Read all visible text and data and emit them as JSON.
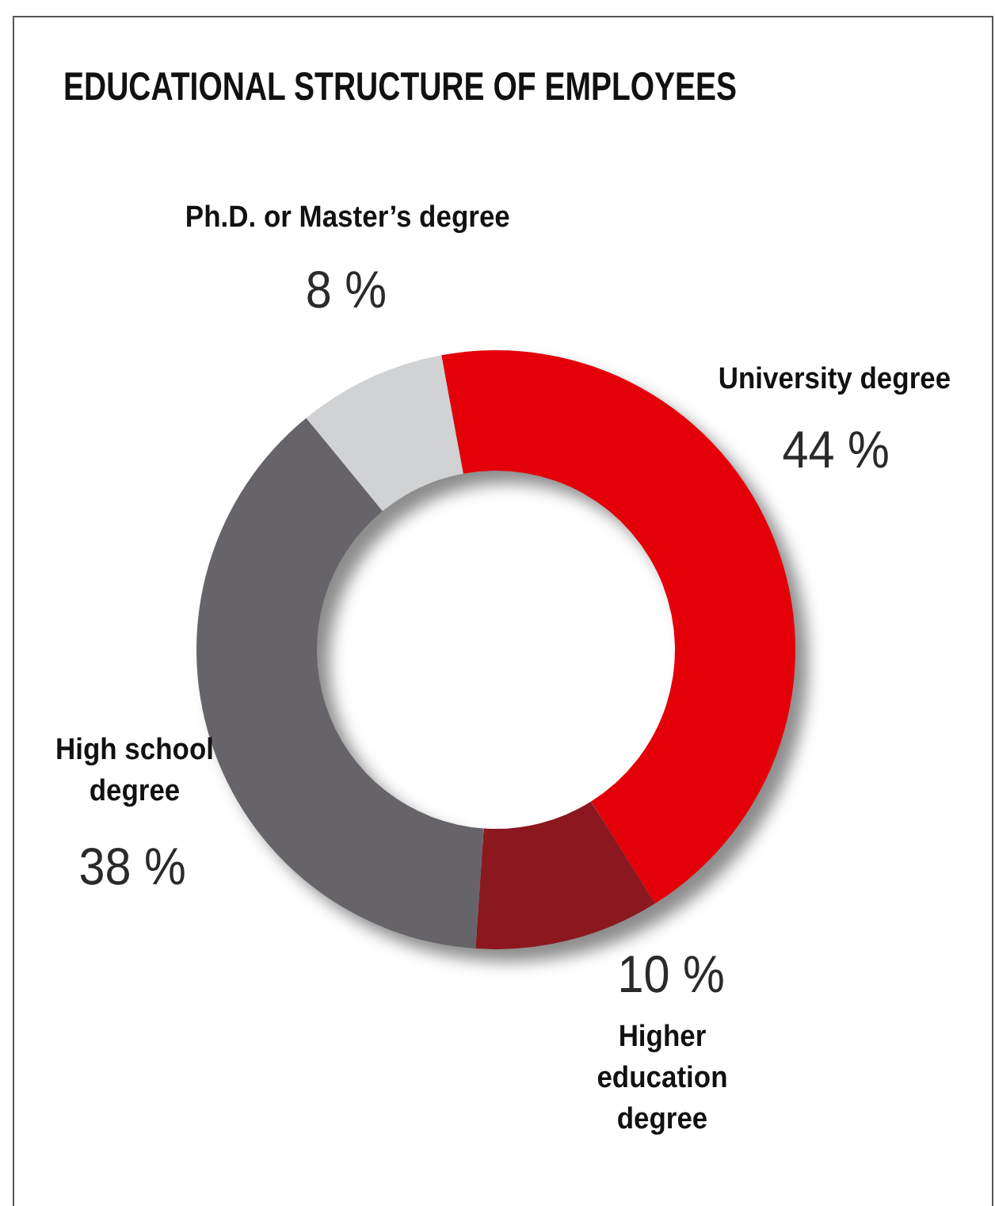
{
  "chart_data": {
    "type": "donut",
    "title": "EDUCATIONAL STRUCTURE OF EMPLOYEES",
    "categories": [
      "University degree",
      "Higher education degree",
      "High school degree",
      "Ph.D. or Master’s degree"
    ],
    "values": [
      44,
      10,
      38,
      8
    ],
    "colors": [
      "#e30009",
      "#8b181f",
      "#666469",
      "#d1d2d4"
    ],
    "value_labels": [
      "44 %",
      "10 %",
      "38 %",
      "8 %"
    ],
    "legend": false
  }
}
